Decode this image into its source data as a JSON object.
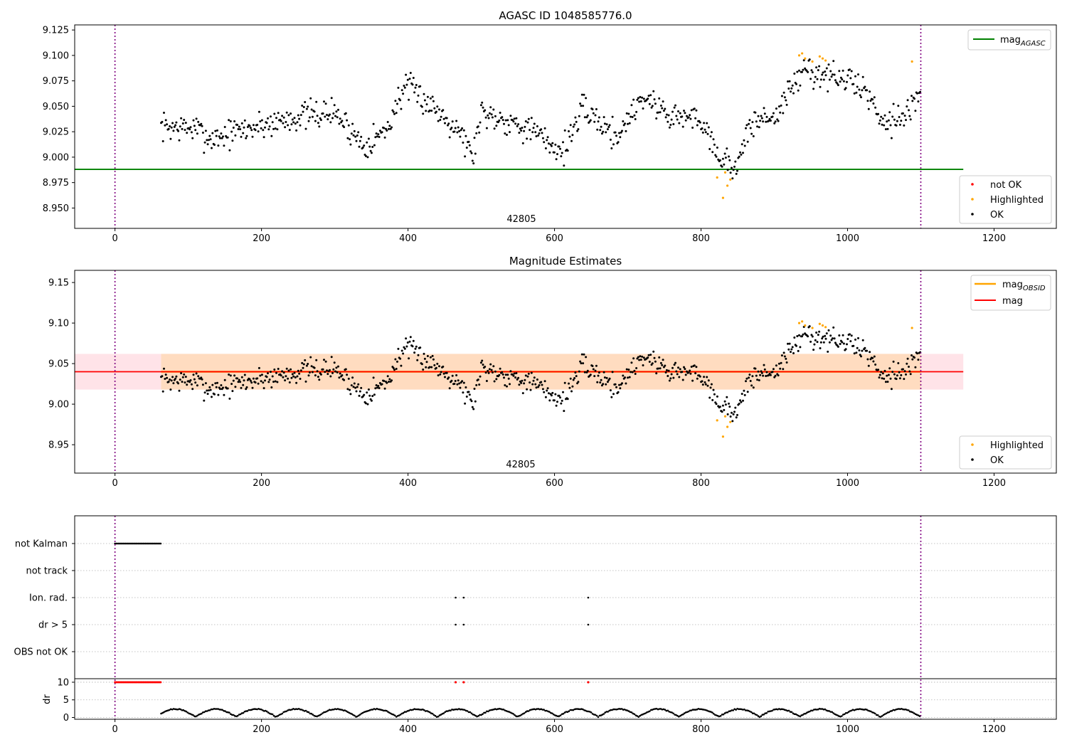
{
  "chart_data": [
    {
      "type": "scatter",
      "title": "AGASC ID 1048585776.0",
      "annotation": "42805",
      "xlim": [
        -55,
        1285
      ],
      "ylim": [
        8.93,
        9.13
      ],
      "xticks": [
        0,
        200,
        400,
        600,
        800,
        1000,
        1200
      ],
      "yticks": [
        8.95,
        8.975,
        9.0,
        9.025,
        9.05,
        9.075,
        9.1,
        9.125
      ],
      "ytick_labels": [
        "8.950",
        "8.975",
        "9.000",
        "9.025",
        "9.050",
        "9.075",
        "9.100",
        "9.125"
      ],
      "vlines": [
        0,
        1100
      ],
      "mag_agasc": 8.988,
      "mag_agasc_range": [
        -55,
        1158
      ],
      "series_ok": {
        "x_start": 63,
        "x_end": 1100,
        "step": 1.3,
        "seed": 7,
        "segments": [
          {
            "x": 63,
            "y": 9.03
          },
          {
            "x": 110,
            "y": 9.028
          },
          {
            "x": 130,
            "y": 9.018
          },
          {
            "x": 180,
            "y": 9.028
          },
          {
            "x": 250,
            "y": 9.04
          },
          {
            "x": 300,
            "y": 9.044
          },
          {
            "x": 340,
            "y": 9.012
          },
          {
            "x": 370,
            "y": 9.026
          },
          {
            "x": 395,
            "y": 9.07
          },
          {
            "x": 420,
            "y": 9.058
          },
          {
            "x": 470,
            "y": 9.028
          },
          {
            "x": 488,
            "y": 9.0
          },
          {
            "x": 500,
            "y": 9.045
          },
          {
            "x": 560,
            "y": 9.03
          },
          {
            "x": 585,
            "y": 9.018
          },
          {
            "x": 610,
            "y": 9.005
          },
          {
            "x": 640,
            "y": 9.048
          },
          {
            "x": 685,
            "y": 9.02
          },
          {
            "x": 720,
            "y": 9.06
          },
          {
            "x": 760,
            "y": 9.04
          },
          {
            "x": 800,
            "y": 9.038
          },
          {
            "x": 830,
            "y": 8.995
          },
          {
            "x": 850,
            "y": 8.992
          },
          {
            "x": 870,
            "y": 9.035
          },
          {
            "x": 900,
            "y": 9.04
          },
          {
            "x": 940,
            "y": 9.086
          },
          {
            "x": 1000,
            "y": 9.075
          },
          {
            "x": 1020,
            "y": 9.07
          },
          {
            "x": 1050,
            "y": 9.035
          },
          {
            "x": 1085,
            "y": 9.045
          },
          {
            "x": 1100,
            "y": 9.066
          }
        ]
      },
      "highlighted": [
        {
          "x": 822,
          "y": 8.98
        },
        {
          "x": 830,
          "y": 8.96
        },
        {
          "x": 833,
          "y": 8.985
        },
        {
          "x": 836,
          "y": 8.972
        },
        {
          "x": 840,
          "y": 8.978
        },
        {
          "x": 934,
          "y": 9.1
        },
        {
          "x": 938,
          "y": 9.102
        },
        {
          "x": 942,
          "y": 9.097
        },
        {
          "x": 952,
          "y": 9.094
        },
        {
          "x": 962,
          "y": 9.099
        },
        {
          "x": 966,
          "y": 9.097
        },
        {
          "x": 970,
          "y": 9.095
        },
        {
          "x": 1088,
          "y": 9.094
        }
      ],
      "legend_upper": [
        "mag_AGASC"
      ],
      "legend_lower": [
        "not OK",
        "Highlighted",
        "OK"
      ]
    },
    {
      "type": "scatter",
      "title": "Magnitude Estimates",
      "annotation": "42805",
      "xlim": [
        -55,
        1285
      ],
      "ylim": [
        8.915,
        9.165
      ],
      "xticks": [
        0,
        200,
        400,
        600,
        800,
        1000,
        1200
      ],
      "yticks": [
        8.95,
        9.0,
        9.05,
        9.1,
        9.15
      ],
      "ytick_labels": [
        "8.95",
        "9.00",
        "9.05",
        "9.10",
        "9.15"
      ],
      "vlines": [
        0,
        1100
      ],
      "mag": 9.04,
      "mag_obsid": 9.04,
      "band_outer": [
        9.018,
        9.062
      ],
      "band_inner": [
        9.018,
        9.062
      ],
      "band_inner_range": [
        63,
        1100
      ],
      "band_range": [
        -55,
        1158
      ],
      "legend_upper": [
        "mag_OBSID",
        "mag"
      ],
      "legend_lower": [
        "Highlighted",
        "OK"
      ]
    },
    {
      "type": "scatter",
      "title": "",
      "categories": [
        "not Kalman",
        "not track",
        "Ion. rad.",
        "dr > 5",
        "OBS not OK"
      ],
      "not_kalman_range": [
        0,
        63
      ],
      "ion_rad_x": [
        465,
        476,
        646
      ],
      "dr5_x": [
        465,
        476,
        646
      ],
      "dr_axis": {
        "ylabel": "dr",
        "ylim": [
          -0.5,
          11
        ],
        "yticks": [
          0,
          5,
          10
        ],
        "ytick_labels": [
          "0",
          "5",
          "10"
        ],
        "xticks": [
          0,
          200,
          400,
          600,
          800,
          1000,
          1200
        ],
        "red_markers_x": [
          465,
          476,
          646
        ],
        "red_markers_range": [
          0,
          63
        ],
        "red_markers_y": 10
      }
    }
  ],
  "labels": {
    "agasc_sub": "AGASC",
    "obsid_sub": "OBSID",
    "mag_base": "mag",
    "not_ok": "not OK",
    "highlighted": "Highlighted",
    "ok": "OK",
    "dr_ylabel": "dr"
  },
  "colors": {
    "ok": "#000000",
    "highlighted": "#ffa500",
    "not_ok": "#ff0000",
    "agasc_line": "#008000",
    "mag_line": "#ff0000",
    "obsid_line": "#ffa500",
    "band_outer": "#ffc0cb",
    "band_inner": "#ffdab9",
    "vline": "#800080",
    "grid": "#b0b0b0"
  }
}
